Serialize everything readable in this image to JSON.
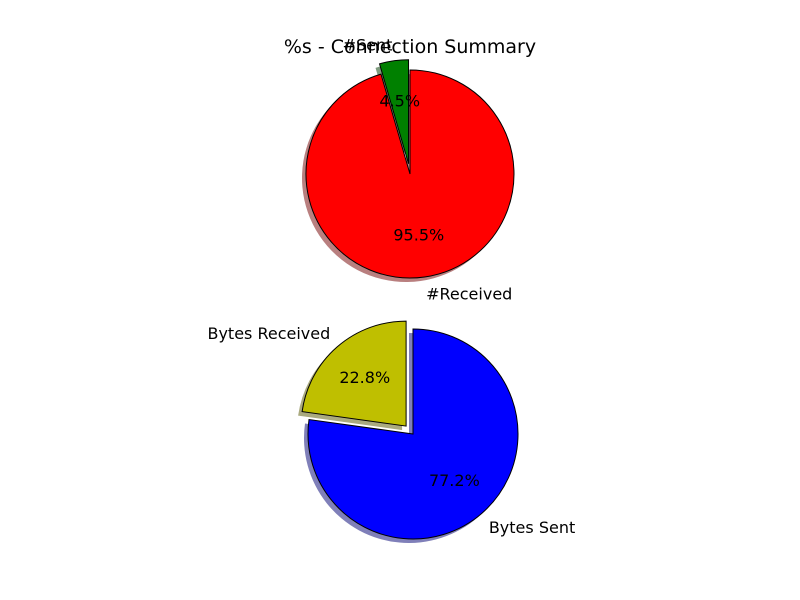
{
  "chart_data": [
    {
      "type": "pie",
      "title": "%s - Connection Summary",
      "slices": [
        {
          "label": "#Sent",
          "value": 4.5,
          "pct_label": "4.5%",
          "color": "#008000",
          "exploded": true
        },
        {
          "label": "#Received",
          "value": 95.5,
          "pct_label": "95.5%",
          "color": "#ff0000",
          "exploded": false
        }
      ],
      "start_angle_deg": 90,
      "shadow": true
    },
    {
      "type": "pie",
      "title": "",
      "slices": [
        {
          "label": "Bytes Received",
          "value": 22.8,
          "pct_label": "22.8%",
          "color": "#bfbf00",
          "exploded": true
        },
        {
          "label": "Bytes Sent",
          "value": 77.2,
          "pct_label": "77.2%",
          "color": "#0000ff",
          "exploded": false
        }
      ],
      "start_angle_deg": 90,
      "shadow": true
    }
  ]
}
